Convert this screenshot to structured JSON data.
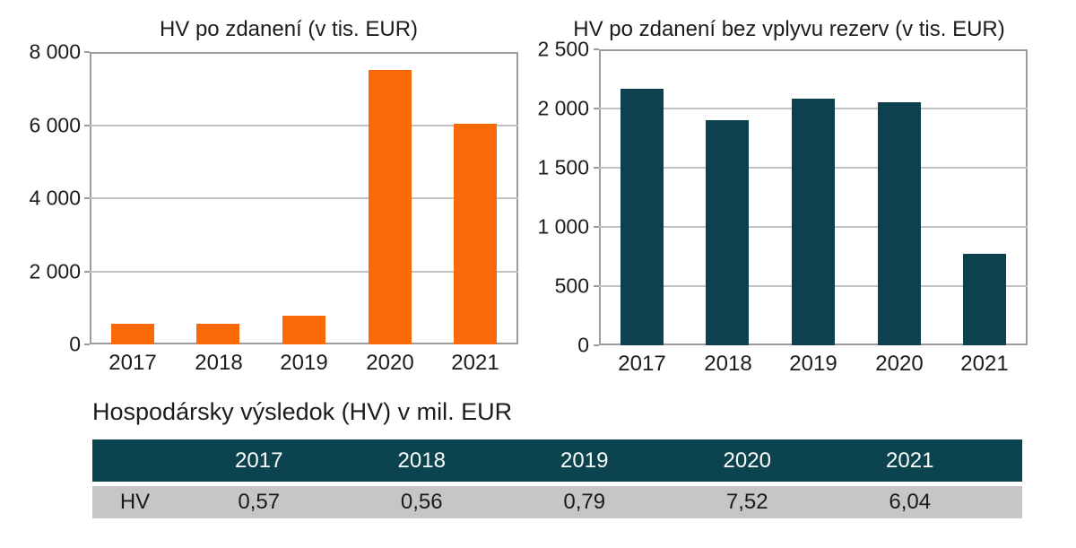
{
  "colors": {
    "background": "#FFFFFF",
    "orange": "#F8690A",
    "teal": "#0C424D",
    "grid": "#C2C2C2",
    "axis_border": "#9C9C9C",
    "text": "#1C1C1C",
    "table_header_bg": "#0B434E",
    "table_header_text": "#FFFFFF",
    "table_row_bg": "#C6C6C6"
  },
  "chart_data": [
    {
      "type": "bar",
      "title": "HV po zdanení (v tis. EUR)",
      "categories": [
        "2017",
        "2018",
        "2019",
        "2020",
        "2021"
      ],
      "values": [
        570,
        560,
        790,
        7520,
        6040
      ],
      "xlabel": "",
      "ylabel": "",
      "ylim": [
        0,
        8000
      ],
      "yticks": [
        0,
        2000,
        4000,
        6000,
        8000
      ],
      "ytick_labels": [
        "0",
        "2 000",
        "4 000",
        "6 000",
        "8 000"
      ],
      "bar_color": "#F8690A",
      "grid": true,
      "legend": "none"
    },
    {
      "type": "bar",
      "title": "HV po zdanení bez vplyvu rezerv (v tis. EUR)",
      "categories": [
        "2017",
        "2018",
        "2019",
        "2020",
        "2021"
      ],
      "values": [
        2170,
        1900,
        2085,
        2055,
        775
      ],
      "xlabel": "",
      "ylabel": "",
      "ylim": [
        0,
        2500
      ],
      "yticks": [
        0,
        500,
        1000,
        1500,
        2000,
        2500
      ],
      "ytick_labels": [
        "0",
        "500",
        "1 000",
        "1 500",
        "2 000",
        "2 500"
      ],
      "bar_color": "#0C424D",
      "grid": true,
      "legend": "none"
    }
  ],
  "table": {
    "caption": "Hospodársky výsledok (HV) v mil. EUR",
    "columns": [
      "",
      "2017",
      "2018",
      "2019",
      "2020",
      "2021"
    ],
    "rows": [
      {
        "label": "HV",
        "values": [
          "0,57",
          "0,56",
          "0,79",
          "7,52",
          "6,04"
        ]
      }
    ]
  }
}
